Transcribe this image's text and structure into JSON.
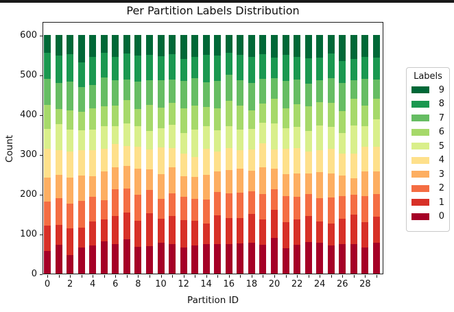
{
  "figure": {
    "top_strip_color": "#181818",
    "background": "#ffffff"
  },
  "chart_data": {
    "type": "bar",
    "stacked": true,
    "title": "Per Partition Labels Distribution",
    "xlabel": "Partition ID",
    "ylabel": "Count",
    "ylim": [
      0,
      634
    ],
    "grid": false,
    "yticks": [
      0,
      100,
      200,
      300,
      400,
      500,
      600
    ],
    "xtick_labeled_positions": [
      0,
      2,
      4,
      6,
      8,
      10,
      12,
      14,
      16,
      18,
      20,
      22,
      24,
      26,
      28
    ],
    "categories": [
      0,
      1,
      2,
      3,
      4,
      5,
      6,
      7,
      8,
      9,
      10,
      11,
      12,
      13,
      14,
      15,
      16,
      17,
      18,
      19,
      20,
      21,
      22,
      23,
      24,
      25,
      26,
      27,
      28,
      29
    ],
    "bar_total": 600,
    "legend": {
      "title": "Labels",
      "position": "outside-right",
      "entries": [
        {
          "label": "9",
          "color": "#006837"
        },
        {
          "label": "8",
          "color": "#1a9850"
        },
        {
          "label": "7",
          "color": "#66bd63"
        },
        {
          "label": "6",
          "color": "#a6d96a"
        },
        {
          "label": "5",
          "color": "#d9ef8b"
        },
        {
          "label": "4",
          "color": "#fee08b"
        },
        {
          "label": "3",
          "color": "#fdae61"
        },
        {
          "label": "2",
          "color": "#f46d43"
        },
        {
          "label": "1",
          "color": "#d73027"
        },
        {
          "label": "0",
          "color": "#a50026"
        }
      ]
    },
    "series": [
      {
        "name": "0",
        "color": "#a50026",
        "values": [
          57,
          72,
          47,
          66,
          71,
          81,
          74,
          86,
          67,
          69,
          78,
          74,
          66,
          71,
          74,
          74,
          74,
          76,
          78,
          72,
          90,
          63,
          72,
          79,
          78,
          71,
          74,
          74,
          66,
          78
        ]
      },
      {
        "name": "1",
        "color": "#d73027",
        "values": [
          64,
          50,
          66,
          50,
          60,
          55,
          71,
          67,
          66,
          83,
          60,
          71,
          68,
          62,
          52,
          73,
          66,
          64,
          72,
          64,
          70,
          66,
          64,
          66,
          53,
          55,
          64,
          74,
          63,
          65
        ]
      },
      {
        "name": "2",
        "color": "#f46d43",
        "values": [
          60,
          68,
          63,
          67,
          62,
          48,
          67,
          61,
          65,
          58,
          50,
          57,
          59,
          55,
          60,
          58,
          62,
          63,
          57,
          64,
          52,
          66,
          57,
          55,
          59,
          65,
          57,
          50,
          66,
          57
        ]
      },
      {
        "name": "3",
        "color": "#fdae61",
        "values": [
          60,
          58,
          65,
          64,
          52,
          73,
          55,
          57,
          66,
          52,
          62,
          65,
          52,
          55,
          62,
          52,
          58,
          61,
          52,
          67,
          52,
          55,
          59,
          52,
          65,
          61,
          52,
          42,
          62,
          57
        ]
      },
      {
        "name": "4",
        "color": "#fee08b",
        "values": [
          73,
          62,
          66,
          63,
          65,
          57,
          59,
          50,
          55,
          50,
          67,
          49,
          57,
          50,
          66,
          50,
          56,
          46,
          53,
          61,
          48,
          64,
          64,
          55,
          55,
          62,
          55,
          62,
          62,
          62
        ]
      },
      {
        "name": "5",
        "color": "#d9ef8b",
        "values": [
          50,
          66,
          55,
          50,
          52,
          57,
          45,
          57,
          52,
          47,
          49,
          58,
          52,
          69,
          57,
          53,
          55,
          52,
          52,
          51,
          66,
          52,
          53,
          52,
          62,
          55,
          51,
          70,
          52,
          69
        ]
      },
      {
        "name": "6",
        "color": "#a6d96a",
        "values": [
          60,
          38,
          48,
          47,
          54,
          50,
          51,
          58,
          43,
          65,
          51,
          55,
          62,
          60,
          48,
          56,
          63,
          60,
          46,
          49,
          62,
          50,
          57,
          62,
          59,
          60,
          56,
          68,
          52,
          52
        ]
      },
      {
        "name": "7",
        "color": "#66bd63",
        "values": [
          66,
          65,
          73,
          62,
          58,
          72,
          64,
          52,
          69,
          62,
          69,
          59,
          68,
          69,
          62,
          68,
          66,
          64,
          69,
          62,
          51,
          68,
          62,
          57,
          55,
          62,
          70,
          46,
          67,
          48
        ]
      },
      {
        "name": "8",
        "color": "#1a9850",
        "values": [
          65,
          69,
          69,
          62,
          71,
          62,
          59,
          65,
          65,
          64,
          61,
          64,
          56,
          54,
          69,
          64,
          55,
          64,
          66,
          62,
          52,
          66,
          57,
          63,
          57,
          62,
          56,
          54,
          55,
          55
        ]
      },
      {
        "name": "9",
        "color": "#006837",
        "values": [
          45,
          52,
          48,
          69,
          55,
          45,
          55,
          47,
          52,
          50,
          53,
          48,
          60,
          55,
          50,
          52,
          45,
          50,
          55,
          48,
          57,
          50,
          55,
          59,
          57,
          47,
          65,
          60,
          55,
          57
        ]
      }
    ]
  }
}
